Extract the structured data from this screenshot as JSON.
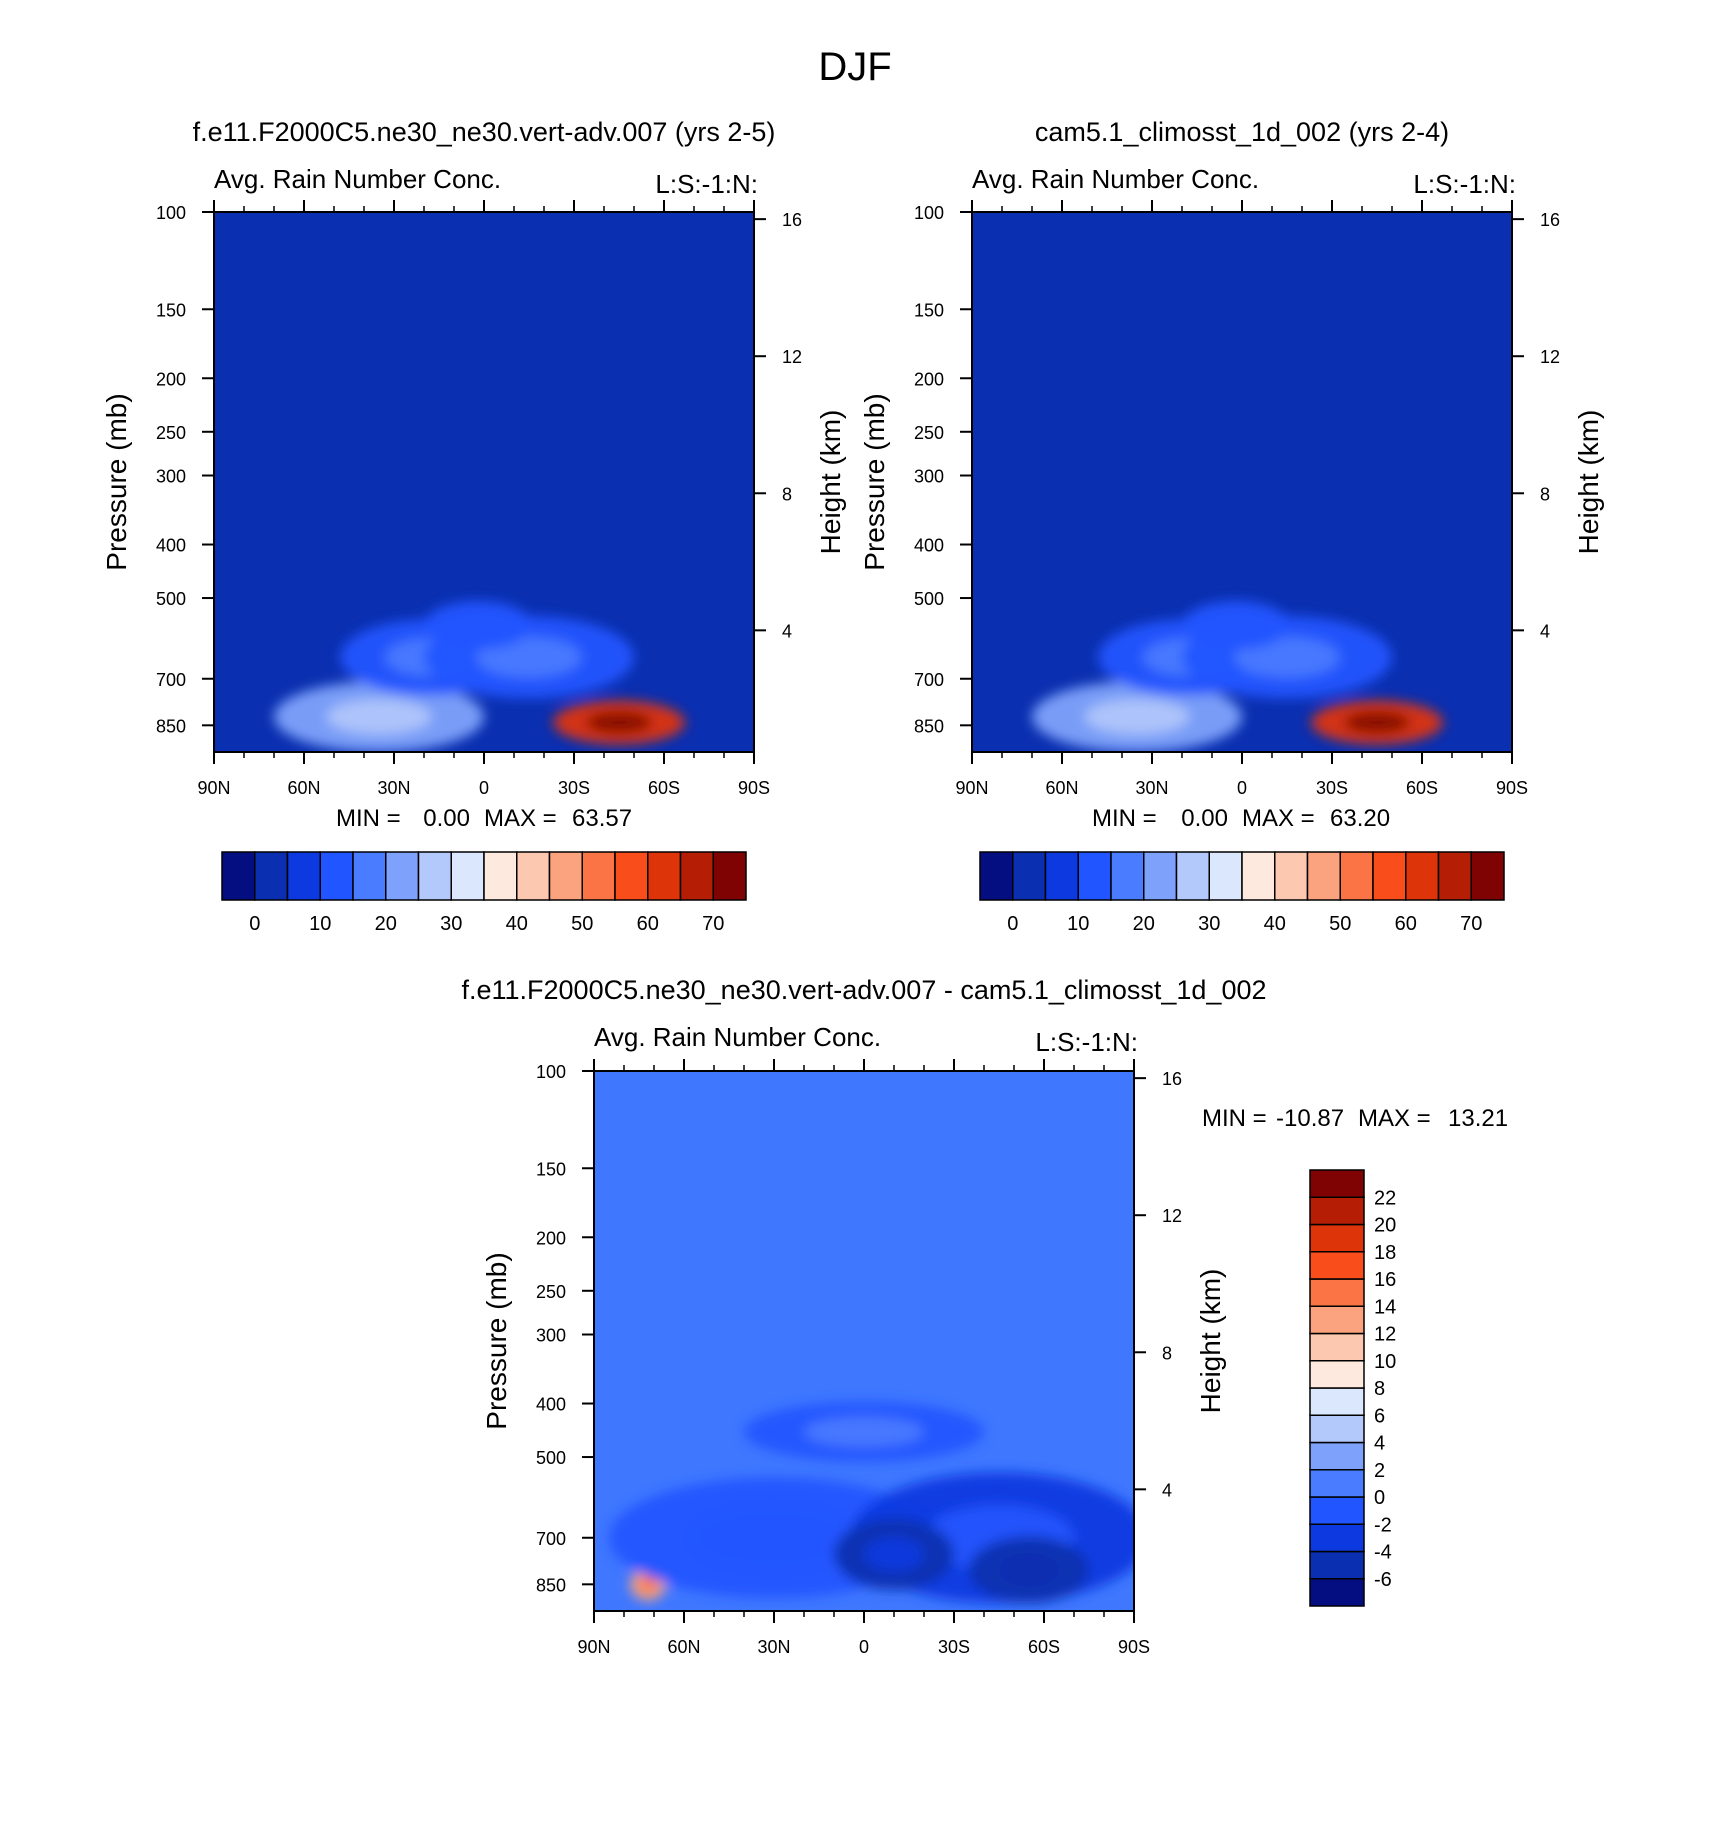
{
  "figure_title": "DJF",
  "colors": {
    "panel_bg_abs": "#0a2fb0",
    "panel_bg_diff": "#3f77ff",
    "abs_palette": [
      "#040e80",
      "#0a2fb0",
      "#0d3ae0",
      "#2155ff",
      "#4a7cff",
      "#7ea2fb",
      "#b3c8fb",
      "#dbe7fd",
      "#fde9dd",
      "#fcc8af",
      "#fba27e",
      "#fa7445",
      "#f94d1c",
      "#dd3409",
      "#b51d05",
      "#800303"
    ],
    "diff_palette": [
      "#040e80",
      "#0a2fb0",
      "#0d3ae0",
      "#2155ff",
      "#4a7cff",
      "#7ea2fb",
      "#b3c8fb",
      "#dbe7fd",
      "#fde9dd",
      "#fcc8af",
      "#fba27e",
      "#fa7445",
      "#f94d1c",
      "#dd3409",
      "#b51d05",
      "#800303"
    ]
  },
  "chart_data": [
    {
      "type": "heatmap",
      "case_title": "f.e11.F2000C5.ne30_ne30.vert-adv.007 (yrs 2-5)",
      "title_left": "Avg. Rain Number Conc.",
      "title_right": "L:S:-1:N:",
      "ylabel": "Pressure (mb)",
      "ylabel_right": "Height (km)",
      "x_ticks": [
        "90N",
        "60N",
        "30N",
        "0",
        "30S",
        "60S",
        "90S"
      ],
      "x_range": [
        90,
        -90
      ],
      "y_ticks": [
        "100",
        "150",
        "200",
        "250",
        "300",
        "400",
        "500",
        "700",
        "850"
      ],
      "y_range_mb": [
        100,
        950
      ],
      "height_ticks": [
        "16",
        "12",
        "8",
        "4"
      ],
      "min_label": "MIN =",
      "min_value": "0.00",
      "max_label": "MAX =",
      "max_value": "63.57",
      "colorbar_labels": [
        "0",
        "10",
        "20",
        "30",
        "40",
        "50",
        "60",
        "70"
      ],
      "colorbar_levels": [
        0,
        5,
        10,
        15,
        20,
        25,
        30,
        35,
        40,
        45,
        50,
        55,
        60,
        65,
        70
      ],
      "regions": [
        {
          "lat": 35,
          "p": 820,
          "dlat": 35,
          "dp": 130,
          "value": 22
        },
        {
          "lat": 18,
          "p": 640,
          "dlat": 30,
          "dp": 110,
          "value": 14
        },
        {
          "lat": -15,
          "p": 640,
          "dlat": 35,
          "dp": 120,
          "value": 12
        },
        {
          "lat": 2,
          "p": 560,
          "dlat": 18,
          "dp": 60,
          "value": 10
        },
        {
          "lat": -45,
          "p": 840,
          "dlat": 22,
          "dp": 80,
          "value": 63.57
        }
      ]
    },
    {
      "type": "heatmap",
      "case_title": "cam5.1_climosst_1d_002 (yrs 2-4)",
      "title_left": "Avg. Rain Number Conc.",
      "title_right": "L:S:-1:N:",
      "ylabel": "Pressure (mb)",
      "ylabel_right": "Height (km)",
      "x_ticks": [
        "90N",
        "60N",
        "30N",
        "0",
        "30S",
        "60S",
        "90S"
      ],
      "x_range": [
        90,
        -90
      ],
      "y_ticks": [
        "100",
        "150",
        "200",
        "250",
        "300",
        "400",
        "500",
        "700",
        "850"
      ],
      "y_range_mb": [
        100,
        950
      ],
      "height_ticks": [
        "16",
        "12",
        "8",
        "4"
      ],
      "min_label": "MIN =",
      "min_value": "0.00",
      "max_label": "MAX =",
      "max_value": "63.20",
      "colorbar_labels": [
        "0",
        "10",
        "20",
        "30",
        "40",
        "50",
        "60",
        "70"
      ],
      "colorbar_levels": [
        0,
        5,
        10,
        15,
        20,
        25,
        30,
        35,
        40,
        45,
        50,
        55,
        60,
        65,
        70
      ],
      "regions": [
        {
          "lat": 35,
          "p": 820,
          "dlat": 35,
          "dp": 130,
          "value": 22
        },
        {
          "lat": 18,
          "p": 640,
          "dlat": 30,
          "dp": 110,
          "value": 14
        },
        {
          "lat": -15,
          "p": 640,
          "dlat": 35,
          "dp": 120,
          "value": 12
        },
        {
          "lat": 2,
          "p": 560,
          "dlat": 18,
          "dp": 60,
          "value": 10
        },
        {
          "lat": -45,
          "p": 840,
          "dlat": 22,
          "dp": 80,
          "value": 63.2
        }
      ]
    },
    {
      "type": "heatmap",
      "case_title": "f.e11.F2000C5.ne30_ne30.vert-adv.007 - cam5.1_climosst_1d_002",
      "title_left": "Avg. Rain Number Conc.",
      "title_right": "L:S:-1:N:",
      "ylabel": "Pressure (mb)",
      "ylabel_right": "Height (km)",
      "x_ticks": [
        "90N",
        "60N",
        "30N",
        "0",
        "30S",
        "60S",
        "90S"
      ],
      "x_range": [
        90,
        -90
      ],
      "y_ticks": [
        "100",
        "150",
        "200",
        "250",
        "300",
        "400",
        "500",
        "700",
        "850"
      ],
      "y_range_mb": [
        100,
        950
      ],
      "height_ticks": [
        "16",
        "12",
        "8",
        "4"
      ],
      "min_label": "MIN =",
      "min_value": "-10.87",
      "max_label": "MAX =",
      "max_value": "13.21",
      "colorbar_labels": [
        "22",
        "20",
        "18",
        "16",
        "14",
        "12",
        "10",
        "8",
        "6",
        "4",
        "2",
        "0",
        "-2",
        "-4",
        "-6"
      ],
      "colorbar_levels": [
        -6,
        -4,
        -2,
        0,
        2,
        4,
        6,
        8,
        10,
        12,
        14,
        16,
        18,
        20,
        22
      ],
      "regions": [
        {
          "lat": 72,
          "p": 850,
          "dlat": 6,
          "dp": 60,
          "value": 12
        },
        {
          "lat": 30,
          "p": 700,
          "dlat": 55,
          "dp": 200,
          "value": -2
        },
        {
          "lat": -45,
          "p": 700,
          "dlat": 50,
          "dp": 220,
          "value": -3
        },
        {
          "lat": -10,
          "p": 750,
          "dlat": 20,
          "dp": 120,
          "value": -5
        },
        {
          "lat": -55,
          "p": 800,
          "dlat": 20,
          "dp": 120,
          "value": -6
        },
        {
          "lat": 0,
          "p": 450,
          "dlat": 40,
          "dp": 60,
          "value": -1
        }
      ]
    }
  ]
}
